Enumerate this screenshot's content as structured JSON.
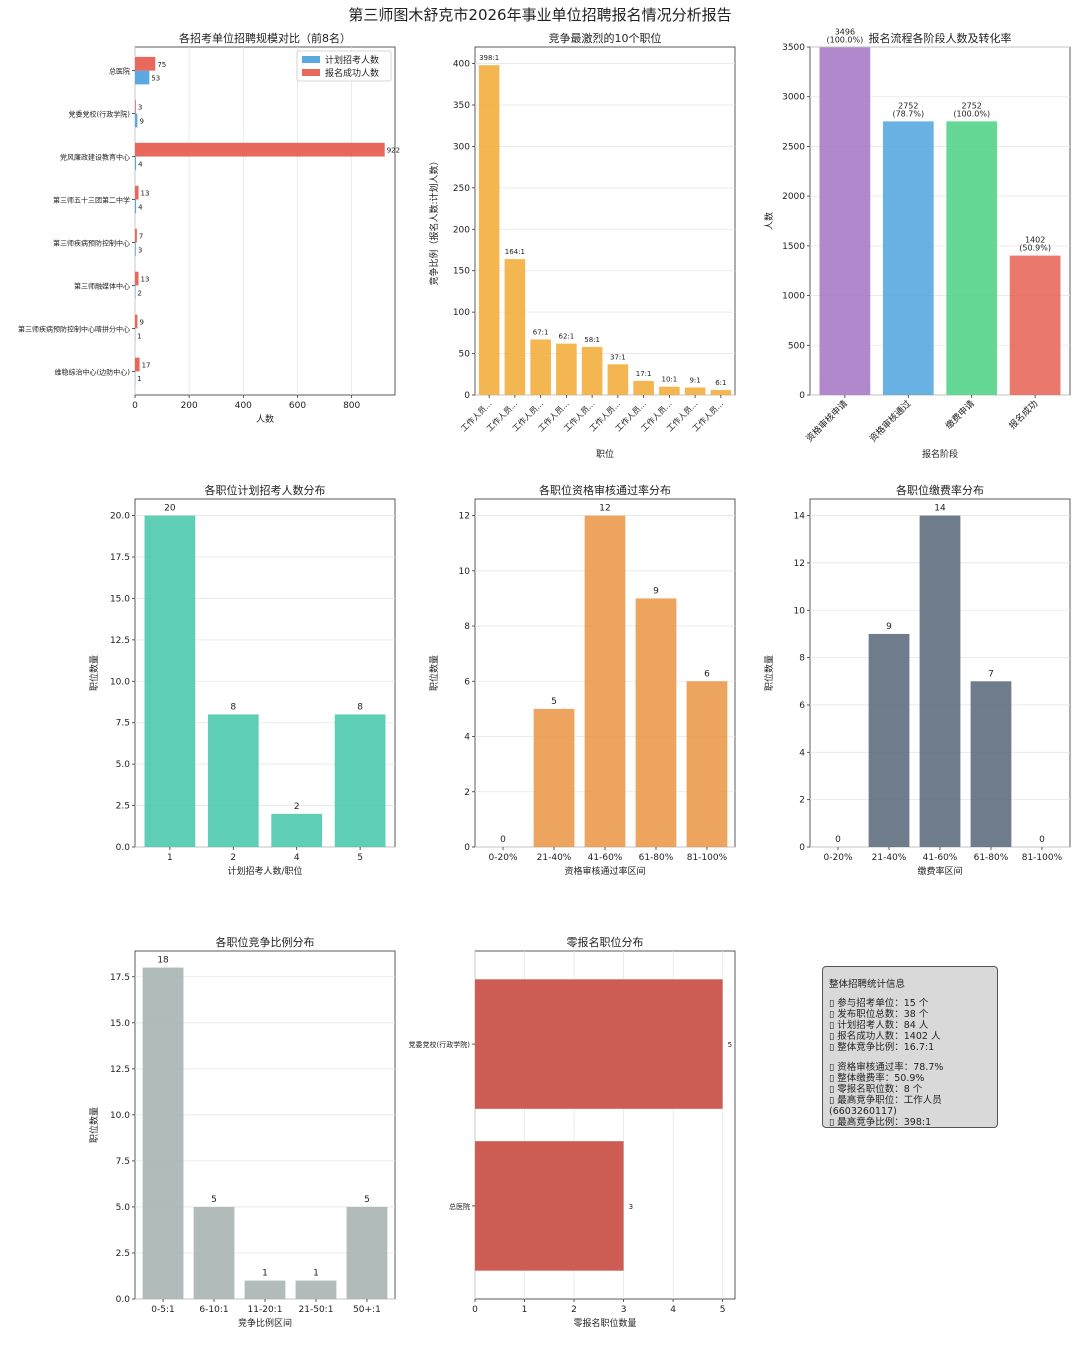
{
  "page_title": "第三师图木舒克市2026年事业单位招聘报名情况分析报告",
  "colors": {
    "blue": "#5aa9e0",
    "red": "#e8695c",
    "orange_bar": "#f3ae3e",
    "purple": "#a87bc7",
    "green": "#55d48a",
    "teal": "#4cc9ae",
    "orange": "#eb9a4e",
    "slate": "#5e6e80",
    "gray": "#a8b4b3",
    "darkred": "#cd5c52"
  },
  "chart_data": [
    {
      "id": "c1",
      "type": "barh",
      "title": "各招考单位招聘规模对比（前8名）",
      "xlabel": "人数",
      "ylabel": "",
      "categories": [
        "总医院",
        "党委党校(行政学院)",
        "党风廉政建设教育中心",
        "第三师五十三团第二中学",
        "第三师疾病预防控制中心",
        "第三师融媒体中心",
        "第三师疾病预防控制中心喀拼分中心",
        "维稳综治中心(边防中心)"
      ],
      "series": [
        {
          "name": "计划招考人数",
          "color": "#5aa9e0",
          "values": [
            53,
            9,
            4,
            4,
            3,
            2,
            1,
            1
          ]
        },
        {
          "name": "报名成功人数",
          "color": "#e8695c",
          "values": [
            75,
            3,
            922,
            13,
            7,
            13,
            9,
            17
          ]
        }
      ],
      "xlim": [
        0,
        960
      ],
      "xticks": [
        0,
        200,
        400,
        600,
        800
      ],
      "legend": "top-right",
      "grid": true
    },
    {
      "id": "c2",
      "type": "bar",
      "title": "竞争最激烈的10个职位",
      "xlabel": "职位",
      "ylabel": "竞争比例（报名人数:计划人数）",
      "categories": [
        "工作人员...",
        "工作人员...",
        "工作人员...",
        "工作人员...",
        "工作人员...",
        "工作人员...",
        "工作人员...",
        "工作人员...",
        "工作人员...",
        "工作人员..."
      ],
      "values": [
        398,
        164,
        67,
        62,
        58,
        37,
        17,
        10,
        9,
        6
      ],
      "labels": [
        "398:1",
        "164:1",
        "67:1",
        "62:1",
        "58:1",
        "37:1",
        "17:1",
        "10:1",
        "9:1",
        "6:1"
      ],
      "ylim": [
        0,
        420
      ],
      "yticks": [
        0,
        50,
        100,
        150,
        200,
        250,
        300,
        350,
        400
      ],
      "color": "#f3ae3e",
      "grid": true
    },
    {
      "id": "c3",
      "type": "bar",
      "title": "报名流程各阶段人数及转化率",
      "xlabel": "报名阶段",
      "ylabel": "人数",
      "categories": [
        "资格审核申请",
        "资格审核通过",
        "缴费申请",
        "报名成功"
      ],
      "values": [
        3496,
        2752,
        2752,
        1402
      ],
      "labels": [
        "3496\n(100.0%)",
        "2752\n(78.7%)",
        "2752\n(100.0%)",
        "1402\n(50.9%)"
      ],
      "colors": [
        "#a87bc7",
        "#5aa9e0",
        "#55d48a",
        "#e8695c"
      ],
      "ylim": [
        0,
        3500
      ],
      "yticks": [
        0,
        500,
        1000,
        1500,
        2000,
        2500,
        3000,
        3500
      ],
      "grid": true
    },
    {
      "id": "c4",
      "type": "bar",
      "title": "各职位计划招考人数分布",
      "xlabel": "计划招考人数/职位",
      "ylabel": "职位数量",
      "categories": [
        "1",
        "2",
        "4",
        "5"
      ],
      "values": [
        20,
        8,
        2,
        8
      ],
      "labels": [
        "20",
        "8",
        "2",
        "8"
      ],
      "ylim": [
        0,
        21
      ],
      "yticks": [
        0.0,
        2.5,
        5.0,
        7.5,
        10.0,
        12.5,
        15.0,
        17.5,
        20.0
      ],
      "color": "#4cc9ae",
      "grid": true
    },
    {
      "id": "c5",
      "type": "bar",
      "title": "各职位资格审核通过率分布",
      "xlabel": "资格审核通过率区间",
      "ylabel": "职位数量",
      "categories": [
        "0-20%",
        "21-40%",
        "41-60%",
        "61-80%",
        "81-100%"
      ],
      "values": [
        0,
        5,
        12,
        9,
        6
      ],
      "labels": [
        "0",
        "5",
        "12",
        "9",
        "6"
      ],
      "ylim": [
        0,
        12.6
      ],
      "yticks": [
        0,
        2,
        4,
        6,
        8,
        10,
        12
      ],
      "color": "#eb9a4e",
      "grid": true
    },
    {
      "id": "c6",
      "type": "bar",
      "title": "各职位缴费率分布",
      "xlabel": "缴费率区间",
      "ylabel": "职位数量",
      "categories": [
        "0-20%",
        "21-40%",
        "41-60%",
        "61-80%",
        "81-100%"
      ],
      "values": [
        0,
        9,
        14,
        7,
        0
      ],
      "labels": [
        "0",
        "9",
        "14",
        "7",
        "0"
      ],
      "ylim": [
        0,
        14.7
      ],
      "yticks": [
        0,
        2,
        4,
        6,
        8,
        10,
        12,
        14
      ],
      "color": "#5e6e80",
      "grid": true
    },
    {
      "id": "c7",
      "type": "bar",
      "title": "各职位竞争比例分布",
      "xlabel": "竞争比例区间",
      "ylabel": "职位数量",
      "categories": [
        "0-5:1",
        "6-10:1",
        "11-20:1",
        "21-50:1",
        "50+:1"
      ],
      "values": [
        18,
        5,
        1,
        1,
        5
      ],
      "labels": [
        "18",
        "5",
        "1",
        "1",
        "5"
      ],
      "ylim": [
        0,
        18.9
      ],
      "yticks": [
        0.0,
        2.5,
        5.0,
        7.5,
        10.0,
        12.5,
        15.0,
        17.5
      ],
      "color": "#a8b4b3",
      "grid": true
    },
    {
      "id": "c8",
      "type": "barh",
      "title": "零报名职位分布",
      "xlabel": "零报名职位数量",
      "ylabel": "",
      "categories": [
        "党委党校(行政学院)",
        "总医院"
      ],
      "series": [
        {
          "name": "零报名职位数量",
          "color": "#cd5c52",
          "values": [
            5,
            3
          ]
        }
      ],
      "labels": [
        "5",
        "3"
      ],
      "xlim": [
        0,
        5.25
      ],
      "xticks": [
        0,
        1,
        2,
        3,
        4,
        5
      ],
      "grid": true
    }
  ],
  "stats": {
    "title": "整体招聘统计信息",
    "group1": [
      "▯ 参与招考单位：15 个",
      "▯ 发布职位总数：38 个",
      "▯ 计划招考人数：84 人",
      "▯ 报名成功人数：1402 人",
      "▯ 整体竞争比例：16.7:1"
    ],
    "group2": [
      "▯ 资格审核通过率：78.7%",
      "▯ 整体缴费率：50.9%",
      "▯ 零报名职位数：8 个",
      "▯ 最高竞争职位：工作人员(6603260117)",
      "▯ 最高竞争比例：398:1"
    ]
  }
}
